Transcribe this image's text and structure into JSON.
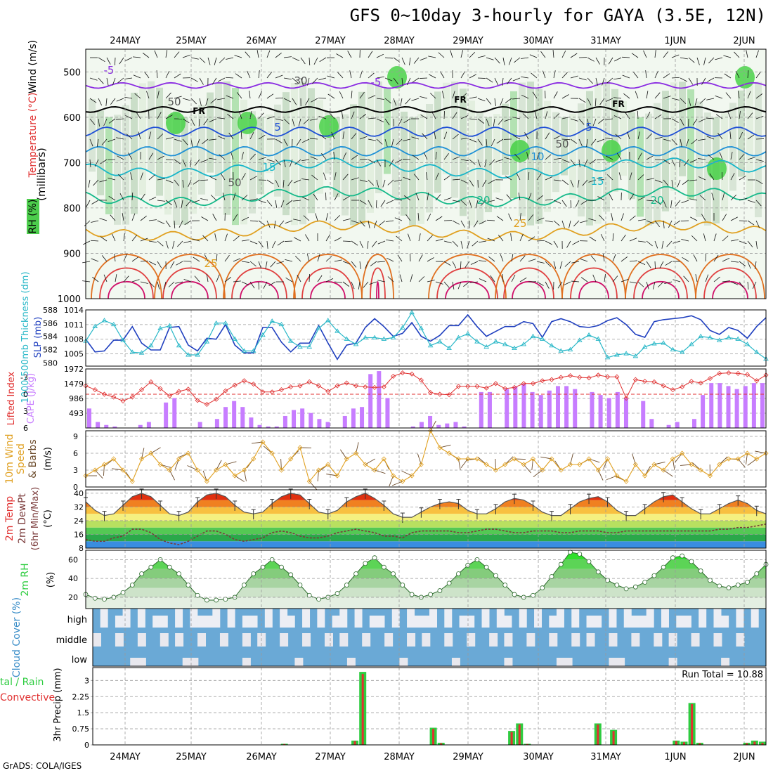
{
  "title": "GFS 0~10day 3-hourly for GAYA (3.5E, 12N)",
  "credit": "GrADS: COLA/IGES",
  "dates": [
    "24MAY",
    "25MAY",
    "26MAY",
    "27MAY",
    "28MAY",
    "29MAY",
    "30MAY",
    "31MAY",
    "1JUN",
    "2JUN"
  ],
  "chart_data": [
    {
      "id": "wind-temp-rh-profile",
      "type": "heatmap",
      "ylabel_parts": [
        "RH (%)",
        "Temperature (°C)",
        "Wind (m/s)"
      ],
      "yaxis_label": "(millibars)",
      "yticks": [
        500,
        600,
        700,
        800,
        900,
        1000
      ],
      "ylim": [
        1000,
        450
      ],
      "contour_labels": [
        {
          "text": "-5",
          "color": "#8a2be2"
        },
        {
          "text": "-5",
          "color": "#8a2be2"
        },
        {
          "text": "30",
          "color": "#555555"
        },
        {
          "text": "50",
          "color": "#555555"
        },
        {
          "text": "FR",
          "color": "#000000"
        },
        {
          "text": "FR",
          "color": "#000000"
        },
        {
          "text": "FR",
          "color": "#000000"
        },
        {
          "text": "5",
          "color": "#1e4fd6"
        },
        {
          "text": "5",
          "color": "#1e4fd6"
        },
        {
          "text": "10",
          "color": "#1e90d6"
        },
        {
          "text": "15",
          "color": "#17b6c9"
        },
        {
          "text": "15",
          "color": "#17b6c9"
        },
        {
          "text": "20",
          "color": "#15b98a"
        },
        {
          "text": "20",
          "color": "#15b98a"
        },
        {
          "text": "25",
          "color": "#e0a020"
        },
        {
          "text": "25",
          "color": "#e0a020"
        },
        {
          "text": "50",
          "color": "#555555"
        },
        {
          "text": "50",
          "color": "#555555"
        }
      ],
      "series": [
        {
          "name": "-5",
          "color": "#8a2be2",
          "base": 530
        },
        {
          "name": "FR",
          "color": "#000000",
          "base": 583
        },
        {
          "name": "5",
          "color": "#1e4fd6",
          "base": 632
        },
        {
          "name": "10",
          "color": "#1e90d6",
          "base": 675
        },
        {
          "name": "15",
          "color": "#17b6c9",
          "base": 712
        },
        {
          "name": "20",
          "color": "#15b98a",
          "base": 775
        },
        {
          "name": "25",
          "color": "#e0a020",
          "base": 850
        }
      ]
    },
    {
      "id": "slp-thickness",
      "type": "line",
      "ylabel_left": "1000-500mb Thickness (dm)",
      "ylabel_right": "SLP (mb)",
      "yticks_left": [
        580,
        582,
        584,
        586,
        588
      ],
      "yticks_right": [
        1005,
        1008,
        1011,
        1014
      ],
      "series": [
        {
          "name": "SLP (mb)",
          "color": "#1f3fbf",
          "values": [
            1008,
            1005.4,
            1005.6,
            1007.8,
            1007.8,
            1010.6,
            1007.2,
            1005.8,
            1005.8,
            1010.4,
            1010.6,
            1006.8,
            1005.6,
            1008.2,
            1008,
            1011,
            1006.8,
            1005.2,
            1005.2,
            1010.4,
            1010.4,
            1007.4,
            1005.4,
            1007.2,
            1007.2,
            1010.8,
            1007.2,
            1003.9,
            1006.8,
            1007.2,
            1010.4,
            1012.2,
            1010.6,
            1008.6,
            1009.2,
            1011.4,
            1008.6,
            1007.6,
            1008.8,
            1010.8,
            1010.8,
            1013,
            1010.6,
            1008.6,
            1009.6,
            1010.6,
            1010.6,
            1011.6,
            1011.2,
            1008.4,
            1011.6,
            1012.2,
            1011.6,
            1010.6,
            1010.4,
            1010.8,
            1011.8,
            1012.4,
            1011,
            1009,
            1008.4,
            1011.6,
            1012,
            1012.2,
            1012.4,
            1012.8,
            1012,
            1009.8,
            1009,
            1010.4,
            1009.8,
            1008.2,
            1010.6,
            1012.4
          ]
        },
        {
          "name": "1000-500mb Thickness (dm)",
          "color": "#2ab8c8",
          "values": [
            583.3,
            585.5,
            586.4,
            585.8,
            583.4,
            581.6,
            581.5,
            582.6,
            585.2,
            585.6,
            582.6,
            581.2,
            581.2,
            583.2,
            586,
            586,
            583.6,
            581.8,
            581.8,
            584.2,
            586.3,
            585.8,
            583.3,
            582.4,
            582.4,
            585.2,
            586.4,
            584.8,
            583.6,
            582.8,
            583.8,
            583.8,
            583.6,
            583.8,
            585.3,
            587.6,
            585.2,
            582.6,
            583.2,
            582.2,
            583.8,
            584.4,
            583.2,
            582.4,
            583.2,
            582.8,
            582.2,
            582.8,
            584,
            583.6,
            582.6,
            581.8,
            582,
            583.4,
            584.2,
            583.6,
            580.8,
            581.2,
            581.4,
            581,
            582.4,
            582.9,
            583,
            582,
            581.6,
            582.8,
            584,
            583.8,
            583.4,
            583.8,
            583.6,
            582.8,
            581.6,
            580.6
          ]
        }
      ]
    },
    {
      "id": "cape-lifted-index",
      "type": "bar",
      "ylabel_left": "Lifted Index",
      "ylabel_right": "CAPE (J/kg)",
      "yticks_left": [
        -3,
        0,
        3,
        6
      ],
      "yticks_right": [
        493,
        986,
        1479,
        1972
      ],
      "series": [
        {
          "name": "CAPE (J/kg)",
          "color": "#c77dff",
          "values": [
            650,
            200,
            100,
            50,
            0,
            0,
            100,
            200,
            0,
            850,
            1000,
            0,
            0,
            200,
            0,
            300,
            700,
            900,
            700,
            350,
            100,
            50,
            50,
            400,
            600,
            650,
            500,
            300,
            200,
            0,
            400,
            650,
            700,
            1800,
            1900,
            1000,
            0,
            0,
            50,
            200,
            400,
            100,
            150,
            200,
            50,
            0,
            1200,
            1200,
            0,
            1300,
            1380,
            1480,
            1200,
            1100,
            1250,
            1400,
            1400,
            1300,
            0,
            1200,
            1100,
            1000,
            1200,
            1000,
            0,
            900,
            300,
            0,
            100,
            200,
            0,
            300,
            1100,
            1500,
            1500,
            1400,
            1300,
            1400,
            1500,
            1500
          ]
        },
        {
          "name": "Lifted Index",
          "color": "#e03030",
          "values": [
            -1.5,
            -0.8,
            0,
            0.5,
            1.2,
            0.5,
            -0.8,
            -2.2,
            -1,
            0.3,
            -0.5,
            -0.9,
            1.1,
            1.8,
            0.9,
            -0.6,
            -1.6,
            -2.4,
            -1.8,
            -0.4,
            -0.4,
            -0.8,
            -1.3,
            -1.5,
            -2.2,
            -1.5,
            -0.5,
            -1.5,
            -2,
            -1.5,
            -1.3,
            -1.2,
            -1.3,
            -3.2,
            -3.8,
            -3.6,
            -2.5,
            -0.3,
            0,
            0.1,
            -1.4,
            -1.4,
            -1.4,
            -1.1,
            -1.9,
            -1,
            -1.2,
            -1.9,
            -1.9,
            -2.4,
            -2.6,
            -3,
            -3.3,
            -3,
            -2.9,
            -3.4,
            -3.1,
            -3.1,
            0.7,
            -2.6,
            -2.3,
            -2.2,
            -1.5,
            -0.8,
            -1.3,
            -2.3,
            -2,
            -2.8,
            -3.7,
            -3.8,
            -3.7,
            -3.5,
            -2.4,
            -3.4
          ]
        }
      ]
    },
    {
      "id": "wind-10m",
      "type": "line",
      "ylabel": "10m Wind Speed & Barbs (m/s)",
      "ylabel_parts": [
        "10m Wind",
        "Speed",
        "& Barbs",
        "(m/s)"
      ],
      "yticks": [
        0,
        3,
        6,
        9
      ],
      "series": [
        {
          "name": "10m Wind Speed (m/s)",
          "color": "#e0a020",
          "values": [
            2,
            3,
            4,
            5,
            3,
            1,
            5,
            6,
            4,
            3,
            5,
            6,
            3,
            1,
            3,
            4,
            2,
            3,
            5,
            8,
            6,
            3,
            5,
            7,
            1,
            3,
            4,
            2,
            5,
            6,
            4,
            3,
            5,
            2,
            1,
            2,
            4,
            10,
            7,
            6,
            5,
            5,
            5,
            4,
            3,
            4,
            5,
            4,
            5,
            3,
            5,
            3,
            4,
            4,
            5,
            3,
            5,
            2,
            1,
            4,
            2,
            4,
            3,
            5,
            6,
            4,
            3,
            2,
            4,
            5,
            5,
            6,
            5,
            6
          ]
        }
      ]
    },
    {
      "id": "temp-dewpoint",
      "type": "area",
      "ylabel_parts": [
        "2m Temp",
        "2m DewPt",
        "(6hr Min/Max)",
        "(°C)"
      ],
      "yticks": [
        8,
        16,
        24,
        32,
        40
      ],
      "series": [
        {
          "name": "2m Temp (°C)",
          "color": "#8b0000",
          "values": [
            35,
            30,
            27,
            28,
            33,
            38,
            40,
            38,
            33,
            28,
            27,
            29,
            35,
            39,
            40,
            38,
            33,
            29,
            28,
            29,
            34,
            38,
            40,
            39,
            34,
            29,
            28,
            30,
            35,
            38,
            40,
            37,
            33,
            28,
            26,
            26,
            29,
            32,
            34,
            35,
            34,
            30,
            28,
            28,
            31,
            35,
            37,
            36,
            33,
            29,
            27,
            27,
            31,
            35,
            37,
            38,
            35,
            30,
            27,
            27,
            31,
            35,
            38,
            39,
            35,
            31,
            28,
            28,
            31,
            34,
            36,
            34,
            30,
            28
          ]
        },
        {
          "name": "2m DewPt (°C)",
          "color": "#7a3a3a",
          "values": [
            13,
            12,
            12,
            14,
            15,
            19,
            19,
            17,
            13,
            11,
            10,
            12,
            15,
            18,
            18,
            16,
            13,
            12,
            13,
            14,
            17,
            18,
            17,
            15,
            14,
            14,
            15,
            17,
            18,
            19,
            18,
            17,
            15,
            15,
            14,
            17,
            18,
            18,
            18,
            18,
            17,
            17,
            18,
            19,
            19,
            18,
            17,
            17,
            18,
            18,
            18,
            17,
            17,
            18,
            18,
            18,
            17,
            17,
            18,
            18,
            18,
            18,
            18,
            18,
            18,
            18,
            18,
            18,
            19,
            19,
            20,
            20,
            21,
            22
          ]
        }
      ]
    },
    {
      "id": "relative-humidity",
      "type": "area",
      "ylabel": "2m RH (%)",
      "yticks": [
        20,
        40,
        60
      ],
      "series": [
        {
          "name": "2m RH (%)",
          "color": "#2ecc40",
          "values": [
            23,
            19,
            18,
            20,
            25,
            33,
            45,
            52,
            60,
            52,
            45,
            33,
            22,
            17,
            17,
            18,
            20,
            33,
            45,
            52,
            60,
            52,
            44,
            33,
            22,
            18,
            20,
            24,
            33,
            45,
            56,
            62,
            52,
            45,
            33,
            23,
            20,
            23,
            27,
            35,
            45,
            54,
            60,
            52,
            43,
            33,
            23,
            20,
            22,
            30,
            42,
            55,
            68,
            66,
            58,
            47,
            38,
            33,
            29,
            31,
            36,
            43,
            52,
            62,
            64,
            58,
            48,
            38,
            32,
            30,
            33,
            36,
            45,
            55
          ]
        }
      ]
    },
    {
      "id": "cloud-cover",
      "type": "heatmap",
      "ylabel": "Cloud Cover (%)",
      "layers": [
        "high",
        "middle",
        "low"
      ]
    },
    {
      "id": "precipitation",
      "type": "bar",
      "ylabel": "3hr Precip (mm)",
      "ylabel_left_parts": [
        "tal / Rain",
        "Convective"
      ],
      "yticks": [
        "0",
        "0.75",
        "1.5",
        "2.25",
        "3"
      ],
      "run_total_label": "Run Total = 10.88",
      "series": [
        {
          "name": "Total / Rain",
          "color": "#2ecc40",
          "values": [
            0,
            0,
            0,
            0,
            0,
            0,
            0,
            0,
            0,
            0,
            0,
            0,
            0,
            0,
            0,
            0,
            0,
            0,
            0,
            0,
            0,
            0,
            0,
            0,
            0.05,
            0,
            0,
            0,
            0,
            0,
            0,
            0,
            0,
            0.2,
            3.4,
            0,
            0,
            0,
            0,
            0,
            0,
            0,
            0,
            0.8,
            0.1,
            0,
            0,
            0,
            0,
            0,
            0,
            0,
            0,
            0.65,
            1.0,
            0.05,
            0,
            0,
            0,
            0,
            0,
            0,
            0,
            0,
            1.0,
            0,
            0.7,
            0,
            0,
            0,
            0,
            0,
            0,
            0,
            0.2,
            0.15,
            1.95,
            0.1,
            0,
            0,
            0,
            0,
            0,
            0.1,
            0.2,
            0.15
          ]
        },
        {
          "name": "Convective",
          "color": "#e03030",
          "values": [
            0,
            0,
            0,
            0,
            0,
            0,
            0,
            0,
            0,
            0,
            0,
            0,
            0,
            0,
            0,
            0,
            0,
            0,
            0,
            0,
            0,
            0,
            0,
            0,
            0.04,
            0,
            0,
            0,
            0,
            0,
            0,
            0,
            0,
            0.18,
            3.3,
            0,
            0,
            0,
            0,
            0,
            0,
            0,
            0,
            0.75,
            0.08,
            0,
            0,
            0,
            0,
            0,
            0,
            0,
            0,
            0.6,
            0.95,
            0.04,
            0,
            0,
            0,
            0,
            0,
            0,
            0,
            0,
            0.95,
            0,
            0.65,
            0,
            0,
            0,
            0,
            0,
            0,
            0,
            0.18,
            0.12,
            1.9,
            0.08,
            0,
            0,
            0,
            0,
            0,
            0.08,
            0.15,
            0.1
          ]
        }
      ]
    }
  ]
}
